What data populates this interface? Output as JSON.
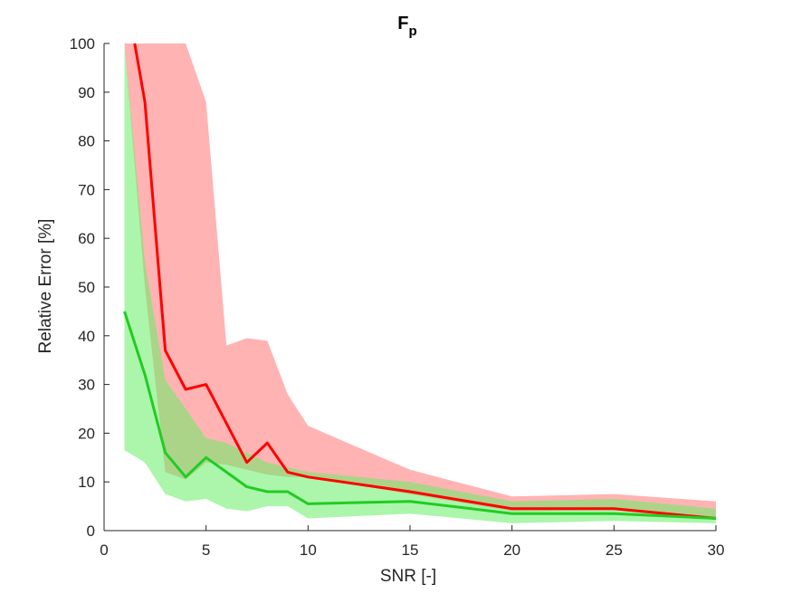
{
  "chart_data": {
    "type": "line",
    "title": "F",
    "title_subscript": "p",
    "xlabel": "SNR [-]",
    "ylabel": "Relative Error [%]",
    "xlim": [
      0,
      30
    ],
    "ylim": [
      0,
      100
    ],
    "xticks": [
      0,
      5,
      10,
      15,
      20,
      25,
      30
    ],
    "yticks": [
      0,
      10,
      20,
      30,
      40,
      50,
      60,
      70,
      80,
      90,
      100
    ],
    "grid": false,
    "bands": [
      {
        "name": "red-band",
        "color": "#ff9999",
        "opacity": 0.75,
        "x": [
          1,
          2,
          3,
          4,
          5,
          6,
          7,
          8,
          9,
          10,
          15,
          20,
          25,
          30
        ],
        "upper": [
          100,
          100,
          100,
          100,
          88,
          38,
          39.5,
          39,
          28,
          21.5,
          12.5,
          7,
          7.5,
          6
        ],
        "lower": [
          100,
          50,
          12,
          10.5,
          14,
          13.5,
          12.5,
          11.5,
          11,
          11,
          7.5,
          4,
          4.2,
          2.5
        ]
      },
      {
        "name": "green-band",
        "color": "#66ee66",
        "opacity": 0.55,
        "x": [
          1,
          2,
          3,
          4,
          5,
          6,
          7,
          8,
          9,
          10,
          15,
          20,
          25,
          30
        ],
        "upper": [
          100,
          55,
          31,
          25,
          19,
          18,
          16,
          14,
          13,
          12,
          10,
          6,
          6.5,
          4.5
        ],
        "lower": [
          16.5,
          14,
          7.5,
          6,
          6.5,
          4.5,
          4,
          5,
          5,
          2.5,
          3.5,
          1.5,
          2,
          1.5
        ]
      }
    ],
    "series": [
      {
        "name": "red-line",
        "color": "#ff0000",
        "x": [
          1.5,
          2,
          3,
          4,
          5,
          6,
          7,
          8,
          9,
          10,
          15,
          20,
          25,
          30
        ],
        "values": [
          100,
          88,
          37,
          29,
          30,
          22,
          14,
          18,
          12,
          11,
          8,
          4.5,
          4.5,
          2.5
        ]
      },
      {
        "name": "green-line",
        "color": "#22cc22",
        "x": [
          1,
          2,
          3,
          4,
          5,
          6,
          7,
          8,
          9,
          10,
          15,
          20,
          25,
          30
        ],
        "values": [
          45,
          32,
          16,
          11,
          15,
          12,
          9,
          8,
          8,
          5.5,
          6,
          3.5,
          3.5,
          2.5
        ]
      }
    ]
  }
}
